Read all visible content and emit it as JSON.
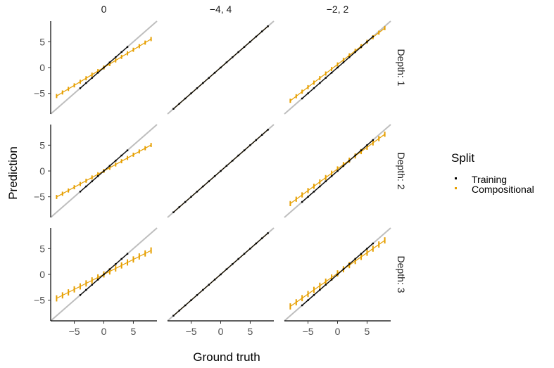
{
  "chart_data": {
    "type": "scatter",
    "xlabel": "Ground truth",
    "ylabel": "Prediction",
    "xlim": [
      -9,
      9
    ],
    "ylim": [
      -9,
      9
    ],
    "xticks": [
      -5,
      0,
      5
    ],
    "yticks": [
      -5,
      0,
      5
    ],
    "x_tick_labels": [
      "−5",
      "0",
      "5"
    ],
    "y_tick_labels": [
      "−5",
      "0",
      "5"
    ],
    "column_labels": [
      "0",
      "−4, 4",
      "−2, 2"
    ],
    "row_labels": [
      "Depth: 1",
      "Depth: 2",
      "Depth: 3"
    ],
    "reference_line": "y = x",
    "grid": false,
    "legend": {
      "title": "Split",
      "position": "right",
      "entries": [
        {
          "name": "Training",
          "color": "#000000"
        },
        {
          "name": "Compositional",
          "color": "#E69F00"
        }
      ]
    },
    "colors": {
      "Training": "#000000",
      "Compositional": "#E69F00",
      "reference": "#bebebe"
    },
    "panels": [
      {
        "row": 0,
        "col": 0,
        "training": {
          "x_range": [
            -4,
            4
          ],
          "slope": 1.0,
          "intercept": 0
        },
        "compositional": {
          "x_range": [
            -8,
            8
          ],
          "slope": 0.69,
          "intercept": 0,
          "errorbar_halfwidth": 0.4
        }
      },
      {
        "row": 0,
        "col": 1,
        "training": {
          "x_range": [
            -8,
            8
          ],
          "slope": 1.0,
          "intercept": 0
        },
        "compositional": {
          "x_range": [
            -8,
            8
          ],
          "slope": 1.0,
          "intercept": 0,
          "errorbar_halfwidth": 0.1
        }
      },
      {
        "row": 0,
        "col": 2,
        "training": {
          "x_range": [
            -6,
            6
          ],
          "slope": 1.0,
          "intercept": 0
        },
        "compositional": {
          "x_range": [
            -8,
            8
          ],
          "slope": 0.88,
          "intercept": 0.6,
          "errorbar_halfwidth": 0.4
        }
      },
      {
        "row": 1,
        "col": 0,
        "training": {
          "x_range": [
            -4,
            4
          ],
          "slope": 1.0,
          "intercept": 0
        },
        "compositional": {
          "x_range": [
            -8,
            8
          ],
          "slope": 0.63,
          "intercept": 0,
          "errorbar_halfwidth": 0.4
        }
      },
      {
        "row": 1,
        "col": 1,
        "training": {
          "x_range": [
            -8,
            8
          ],
          "slope": 1.0,
          "intercept": 0
        },
        "compositional": {
          "x_range": [
            -8,
            8
          ],
          "slope": 1.0,
          "intercept": 0,
          "errorbar_halfwidth": 0.1
        }
      },
      {
        "row": 1,
        "col": 2,
        "training": {
          "x_range": [
            -6,
            6
          ],
          "slope": 1.0,
          "intercept": 0
        },
        "compositional": {
          "x_range": [
            -8,
            8
          ],
          "slope": 0.84,
          "intercept": 0.4,
          "errorbar_halfwidth": 0.5
        }
      },
      {
        "row": 2,
        "col": 0,
        "training": {
          "x_range": [
            -4,
            4
          ],
          "slope": 1.0,
          "intercept": 0
        },
        "compositional": {
          "x_range": [
            -8,
            8
          ],
          "slope": 0.58,
          "intercept": 0,
          "errorbar_halfwidth": 0.6
        }
      },
      {
        "row": 2,
        "col": 1,
        "training": {
          "x_range": [
            -8,
            8
          ],
          "slope": 1.0,
          "intercept": 0
        },
        "compositional": {
          "x_range": [
            -8,
            8
          ],
          "slope": 1.0,
          "intercept": 0,
          "errorbar_halfwidth": 0.1
        }
      },
      {
        "row": 2,
        "col": 2,
        "training": {
          "x_range": [
            -6,
            6
          ],
          "slope": 1.0,
          "intercept": 0
        },
        "compositional": {
          "x_range": [
            -8,
            8
          ],
          "slope": 0.8,
          "intercept": 0.2,
          "errorbar_halfwidth": 0.6
        }
      }
    ]
  }
}
